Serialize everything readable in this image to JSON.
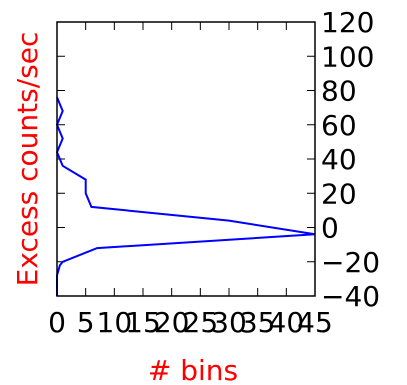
{
  "chart_data": {
    "type": "line",
    "orientation": "horizontal-histogram",
    "xlabel": "# bins",
    "ylabel": "Excess counts/sec",
    "title": "",
    "xlim": [
      0,
      45
    ],
    "ylim": [
      -40,
      120
    ],
    "x_ticks": [
      0,
      5,
      10,
      15,
      20,
      25,
      30,
      35,
      40,
      45
    ],
    "x_tick_labels": [
      "0",
      "5",
      "10",
      "15",
      "20",
      "25",
      "30",
      "35",
      "40",
      "45"
    ],
    "y_ticks": [
      -40,
      -20,
      0,
      20,
      40,
      60,
      80,
      100,
      120
    ],
    "y_tick_labels": [
      "−40",
      "−20",
      "0",
      "20",
      "40",
      "60",
      "80",
      "100",
      "120"
    ],
    "y_axis_side": "right",
    "grid": false,
    "label_color": "#ff0000",
    "line_color": "#0000ff",
    "series": [
      {
        "points": [
          {
            "x": 0,
            "y": -40
          },
          {
            "x": 0,
            "y": -28
          },
          {
            "x": 0.5,
            "y": -22
          },
          {
            "x": 1,
            "y": -20
          },
          {
            "x": 7,
            "y": -12
          },
          {
            "x": 45,
            "y": -4
          },
          {
            "x": 30,
            "y": 4
          },
          {
            "x": 6,
            "y": 12
          },
          {
            "x": 5,
            "y": 20
          },
          {
            "x": 5,
            "y": 28
          },
          {
            "x": 1,
            "y": 36
          },
          {
            "x": 0,
            "y": 44
          },
          {
            "x": 1,
            "y": 52
          },
          {
            "x": 0,
            "y": 60
          },
          {
            "x": 1,
            "y": 68
          },
          {
            "x": 0,
            "y": 76
          }
        ]
      }
    ]
  }
}
